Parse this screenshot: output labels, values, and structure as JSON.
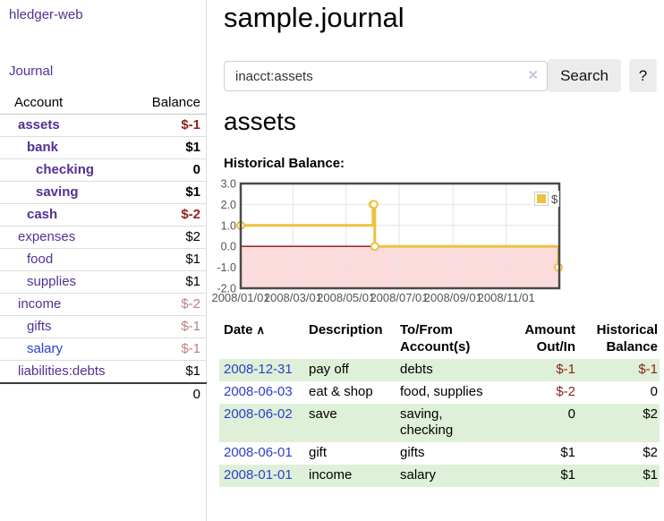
{
  "colors": {
    "purple": "#543093",
    "blue": "#2b40cc",
    "negative": "#8f1f1f",
    "negative_soft": "#bd7f7f",
    "gold": "#edc240",
    "row_green": "#dff0d8",
    "pink_region": "#fbdbdb",
    "zero_line": "#8b1010",
    "grid": "#e4e4e4",
    "chart_border": "#4a4a4a",
    "axis_text": "#545454"
  },
  "sidebar": {
    "brand": "hledger-web",
    "nav_journal": "Journal",
    "accounts": {
      "col_account": "Account",
      "col_balance": "Balance",
      "rows": [
        {
          "name": "assets",
          "indent": 0,
          "bold": true,
          "balance": "$-1",
          "neg": "strong"
        },
        {
          "name": "bank",
          "indent": 1,
          "bold": true,
          "balance": "$1"
        },
        {
          "name": "checking",
          "indent": 2,
          "bold": true,
          "balance": "0"
        },
        {
          "name": "saving",
          "indent": 2,
          "bold": true,
          "balance": "$1"
        },
        {
          "name": "cash",
          "indent": 1,
          "bold": true,
          "balance": "$-2",
          "neg": "strong"
        },
        {
          "name": "expenses",
          "indent": 0,
          "balance": "$2"
        },
        {
          "name": "food",
          "indent": 1,
          "balance": "$1"
        },
        {
          "name": "supplies",
          "indent": 1,
          "balance": "$1"
        },
        {
          "name": "income",
          "indent": 0,
          "balance": "$-2",
          "neg": "soft"
        },
        {
          "name": "gifts",
          "indent": 1,
          "balance": "$-1",
          "neg": "soft"
        },
        {
          "name": "salary",
          "indent": 1,
          "balance": "$-1",
          "neg": "soft",
          "link_color": "blue"
        },
        {
          "name": "liabilities:debts",
          "indent": 0,
          "balance": "$1"
        }
      ],
      "total": "0"
    }
  },
  "main": {
    "title": "sample.journal",
    "search": {
      "value": "inacct:assets",
      "clear_icon": "✕",
      "search_button": "Search",
      "help_button": "?"
    },
    "account_heading": "assets",
    "chart_label": "Historical Balance:"
  },
  "chart_data": {
    "type": "line",
    "step": true,
    "title": "Historical Balance:",
    "series": [
      {
        "name": "$",
        "color": "#edc240",
        "points": [
          [
            "2008-01-01",
            1
          ],
          [
            "2008-06-01",
            2
          ],
          [
            "2008-06-02",
            2
          ],
          [
            "2008-06-03",
            0
          ],
          [
            "2008-12-31",
            -1
          ]
        ]
      }
    ],
    "xrange": [
      "2008-01-01",
      "2009-01-01"
    ],
    "ylim": [
      -2,
      3
    ],
    "ytick_values": [
      3,
      2,
      1,
      0,
      -1,
      -2
    ],
    "yticks": [
      "3.0",
      "2.0",
      "1.0",
      "0.0",
      "-1.0",
      "-2.0"
    ],
    "xticks": [
      {
        "label": "2008/01/01",
        "date": "2008-01-01"
      },
      {
        "label": "2008/03/01",
        "date": "2008-03-01"
      },
      {
        "label": "2008/05/01",
        "date": "2008-05-01"
      },
      {
        "label": "2008/07/01",
        "date": "2008-07-01"
      },
      {
        "label": "2008/09/01",
        "date": "2008-09-01"
      },
      {
        "label": "2008/11/01",
        "date": "2008-11-01"
      }
    ],
    "legend_position": "top-right",
    "grid": true,
    "negative_region": true,
    "sort": "date-ascending"
  },
  "register": {
    "col_date": "Date",
    "sort_icon": "∧",
    "col_description": "Description",
    "col_accounts": "To/From Account(s)",
    "col_amount": "Amount Out/In",
    "col_balance": "Historical Balance",
    "rows": [
      {
        "date": "2008-12-31",
        "description": "pay off",
        "accounts": "debts",
        "amount": "$-1",
        "amount_negative": true,
        "balance": "$-1",
        "balance_negative": true
      },
      {
        "date": "2008-06-03",
        "description": "eat & shop",
        "accounts": "food, supplies",
        "amount": "$-2",
        "amount_negative": true,
        "balance": "0"
      },
      {
        "date": "2008-06-02",
        "description": "save",
        "accounts": "saving, checking",
        "amount": "0",
        "balance": "$2"
      },
      {
        "date": "2008-06-01",
        "description": "gift",
        "accounts": "gifts",
        "amount": "$1",
        "balance": "$2"
      },
      {
        "date": "2008-01-01",
        "description": "income",
        "accounts": "salary",
        "amount": "$1",
        "balance": "$1"
      }
    ]
  }
}
